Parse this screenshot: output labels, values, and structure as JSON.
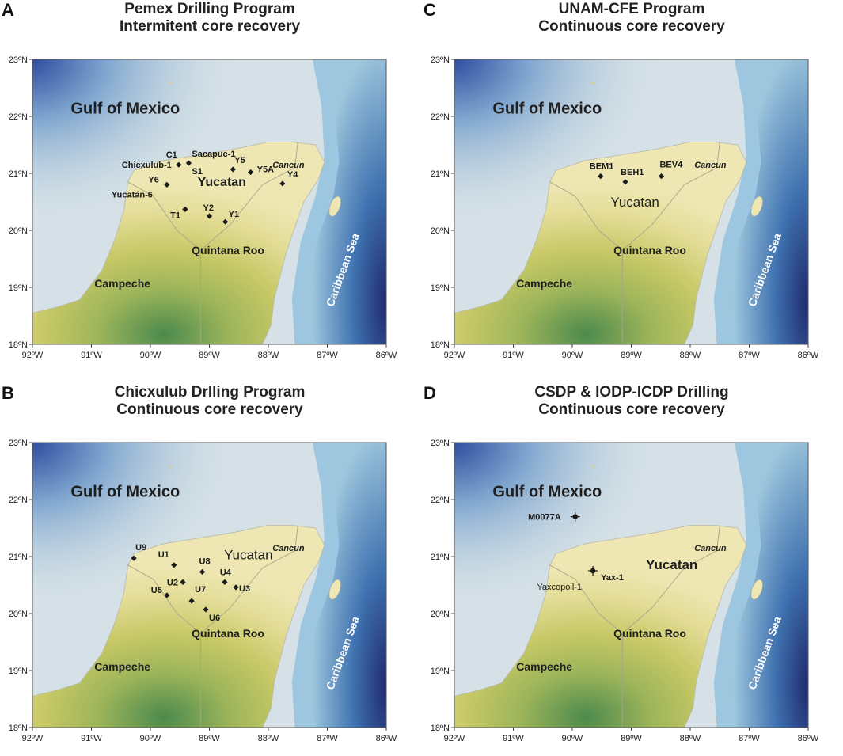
{
  "axes": {
    "lat_labels": [
      "23ºN",
      "22ºN",
      "21ºN",
      "20ºN",
      "19ºN",
      "18ºN"
    ],
    "lon_labels": [
      "92ºW",
      "91ºW",
      "90ºW",
      "89ºW",
      "88ºW",
      "87ºW",
      "86ºW"
    ],
    "lat_range": [
      18,
      23
    ],
    "lon_range": [
      -92,
      -86
    ]
  },
  "geo_labels": {
    "gulf": "Gulf of Mexico",
    "yucatan": "Yucatan",
    "campeche": "Campeche",
    "quintana_roo": "Quintana Roo",
    "cancun": "Cancun",
    "caribbean": "Caribbean Sea"
  },
  "colors": {
    "sea_shallow": "#d5e1e6",
    "sea_mid": "#9ec6dd",
    "sea_deep": "#3f72b0",
    "sea_abyss": "#1f2a6e",
    "land_low": "#eee7b4",
    "land_mid": "#c7c866",
    "land_high": "#4c8a4d",
    "marker": "#1a1a1a"
  },
  "panels": [
    {
      "letter": "A",
      "title_line1": "Pemex Drilling Program",
      "title_line2": "Intermitent core recovery",
      "sites": [
        {
          "name": "C1",
          "lon": -89.52,
          "lat": 21.15
        },
        {
          "name": "Sacapuc-1",
          "lon": -89.35,
          "lat": 21.18
        },
        {
          "name": "Chicxulub-1",
          "lon": -89.52,
          "lat": 21.15
        },
        {
          "name": "S1",
          "lon": -89.35,
          "lat": 21.18
        },
        {
          "name": "Y5",
          "lon": -88.6,
          "lat": 21.07
        },
        {
          "name": "Y5A",
          "lon": -88.3,
          "lat": 21.02
        },
        {
          "name": "Y6",
          "lon": -89.72,
          "lat": 20.8
        },
        {
          "name": "Yucatán-6",
          "lon": -89.72,
          "lat": 20.8
        },
        {
          "name": "Y4",
          "lon": -87.76,
          "lat": 20.82
        },
        {
          "name": "T1",
          "lon": -89.41,
          "lat": 20.37
        },
        {
          "name": "Y2",
          "lon": -89.0,
          "lat": 20.25
        },
        {
          "name": "Y1",
          "lon": -88.73,
          "lat": 20.15
        }
      ]
    },
    {
      "letter": "B",
      "title_line1": "Chicxulub Drlling Program",
      "title_line2": "Continuous core recovery",
      "sites": [
        {
          "name": "U9",
          "lon": -90.28,
          "lat": 20.97
        },
        {
          "name": "U1",
          "lon": -89.6,
          "lat": 20.85
        },
        {
          "name": "U8",
          "lon": -89.12,
          "lat": 20.73
        },
        {
          "name": "U2",
          "lon": -89.45,
          "lat": 20.55
        },
        {
          "name": "U4",
          "lon": -88.74,
          "lat": 20.55
        },
        {
          "name": "U3",
          "lon": -88.55,
          "lat": 20.46
        },
        {
          "name": "U5",
          "lon": -89.72,
          "lat": 20.32
        },
        {
          "name": "U7",
          "lon": -89.3,
          "lat": 20.22
        },
        {
          "name": "U6",
          "lon": -89.06,
          "lat": 20.07
        }
      ]
    },
    {
      "letter": "C",
      "title_line1": "UNAM-CFE Program",
      "title_line2": "Continuous  core recovery",
      "sites": [
        {
          "name": "BEM1",
          "lon": -89.52,
          "lat": 20.95
        },
        {
          "name": "BEH1",
          "lon": -89.1,
          "lat": 20.85
        },
        {
          "name": "BEV4",
          "lon": -88.49,
          "lat": 20.95
        }
      ]
    },
    {
      "letter": "D",
      "title_line1": "CSDP & IODP-ICDP Drilling",
      "title_line2": "Continuous core recovery",
      "sites": [
        {
          "name": "M0077A",
          "lon": -89.95,
          "lat": 21.7
        },
        {
          "name": "Yax-1",
          "lon": -89.65,
          "lat": 20.75
        },
        {
          "name": "Yaxcopoil-1",
          "lon": -89.65,
          "lat": 20.75
        }
      ]
    }
  ]
}
